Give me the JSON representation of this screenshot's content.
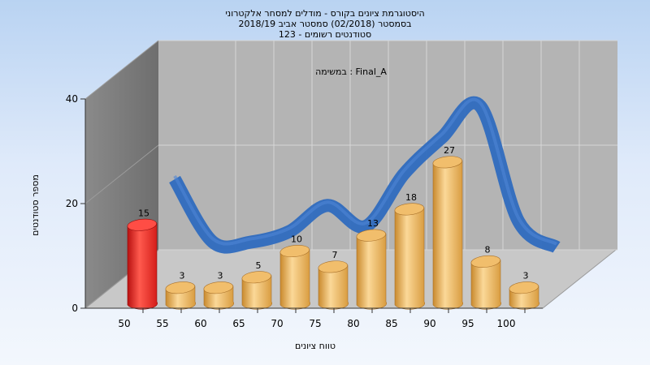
{
  "chart_data": {
    "type": "bar",
    "title_lines": [
      "היסטוגרמת ציונים בקורס - מודלים למסחר אלקטרוני",
      "בסמסטר  (02/2018)  סמסטר אביב 2018/19",
      "סטודנטים רשומים - 123"
    ],
    "annotation": "במשימה : Final_A",
    "xlabel": "טווח ציונים",
    "ylabel": "מספר סטודנטים",
    "x_ticks": [
      "50",
      "55",
      "60",
      "65",
      "70",
      "75",
      "80",
      "85",
      "90",
      "95",
      "100"
    ],
    "y_ticks": [
      "0",
      "20",
      "40"
    ],
    "ylim": [
      0,
      40
    ],
    "bins": [
      {
        "x": 50,
        "value": 15,
        "highlight": true
      },
      {
        "x": 55,
        "value": 3
      },
      {
        "x": 60,
        "value": 3
      },
      {
        "x": 65,
        "value": 5
      },
      {
        "x": 70,
        "value": 10
      },
      {
        "x": 75,
        "value": 7
      },
      {
        "x": 80,
        "value": 13
      },
      {
        "x": 85,
        "value": 18
      },
      {
        "x": 90,
        "value": 27
      },
      {
        "x": 95,
        "value": 8
      },
      {
        "x": 100,
        "value": 3
      }
    ],
    "curve": [
      20,
      8,
      8,
      10,
      15,
      11,
      21,
      28,
      34,
      12,
      7
    ],
    "grid": true,
    "colors": {
      "bar": "#e8a94a",
      "bar_highlight": "#e2201f",
      "curve": "#2f6bbf",
      "back_wall": "#b4b4b4",
      "side_wall": "#7f7f7f",
      "floor": "#c8c8c8"
    }
  }
}
